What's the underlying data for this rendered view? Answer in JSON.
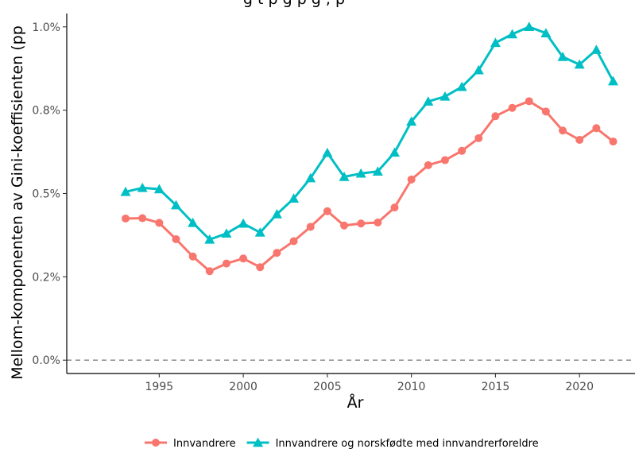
{
  "chart_data": {
    "type": "line",
    "title": "",
    "title_fragment_visible": "g     t      p      g p      g      ,      p",
    "xlabel": "År",
    "ylabel": "Mellom-komponenten av Gini-koeffisienten (pp",
    "x": [
      1993,
      1994,
      1995,
      1996,
      1997,
      1998,
      1999,
      2000,
      2001,
      2002,
      2003,
      2004,
      2005,
      2006,
      2007,
      2008,
      2009,
      2010,
      2011,
      2012,
      2013,
      2014,
      2015,
      2016,
      2017,
      2018,
      2019,
      2020,
      2021,
      2022
    ],
    "xlim": [
      1989.5,
      2023.3
    ],
    "ylim": [
      -0.04,
      1.04
    ],
    "x_ticks": [
      1995,
      2000,
      2005,
      2010,
      2015,
      2020
    ],
    "x_tick_labels": [
      "1995",
      "2000",
      "2005",
      "2010",
      "2015",
      "2020"
    ],
    "y_ticks": [
      0.0,
      0.25,
      0.5,
      0.75,
      1.0
    ],
    "y_tick_labels": [
      "0.0%",
      "0.2%",
      "0.5%",
      "0.8%",
      "1.0%"
    ],
    "reference_line": {
      "y": 0.0,
      "style": "dashed",
      "color": "#808080"
    },
    "grid": false,
    "legend_position": "bottom",
    "series": [
      {
        "name": "Innvandrere",
        "color": "#F8766D",
        "marker": "circle",
        "values": [
          0.425,
          0.426,
          0.412,
          0.363,
          0.311,
          0.267,
          0.29,
          0.305,
          0.279,
          0.322,
          0.357,
          0.4,
          0.447,
          0.404,
          0.41,
          0.413,
          0.458,
          0.542,
          0.585,
          0.6,
          0.628,
          0.666,
          0.732,
          0.757,
          0.777,
          0.746,
          0.689,
          0.661,
          0.696,
          0.656
        ]
      },
      {
        "name": "Innvandrere og norskfødte med innvandrerforeldre",
        "color": "#00BFC4",
        "marker": "triangle",
        "values": [
          0.505,
          0.517,
          0.513,
          0.465,
          0.412,
          0.362,
          0.38,
          0.41,
          0.383,
          0.438,
          0.485,
          0.546,
          0.622,
          0.55,
          0.56,
          0.566,
          0.623,
          0.716,
          0.776,
          0.791,
          0.82,
          0.87,
          0.952,
          0.978,
          1.0,
          0.981,
          0.91,
          0.887,
          0.931,
          0.837
        ]
      }
    ]
  }
}
